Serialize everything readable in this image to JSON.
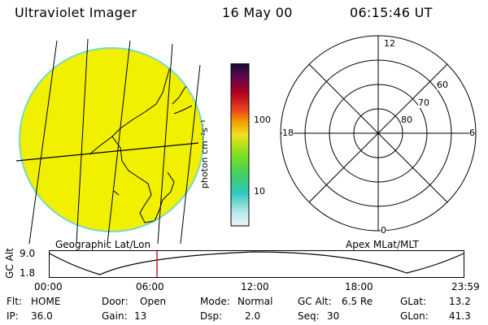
{
  "header": {
    "title": "Ultraviolet Imager",
    "date": "16 May 00",
    "time": "06:15:46 UT"
  },
  "colorbar": {
    "unit_label": "photon cm⁻²s⁻¹",
    "tick_100": "100",
    "tick_10": "10"
  },
  "polar": {
    "mlt_labels": {
      "top": "12",
      "right": "6",
      "bottom": "0",
      "left": "18"
    },
    "lat_labels": [
      "60",
      "70",
      "80"
    ]
  },
  "panels": {
    "geo_label": "Geographic Lat/Lon",
    "apex_label": "Apex MLat/MLT"
  },
  "orbit": {
    "axis_label": "GC Alt",
    "y_max": "9.0",
    "y_min": "1.8",
    "time_ticks": [
      "00:00",
      "06:00",
      "12:00",
      "18:00",
      "23:59"
    ]
  },
  "footer": {
    "row1": [
      {
        "name": "Flt",
        "label": "Flt:",
        "value": "HOME"
      },
      {
        "name": "door",
        "label": "Door:",
        "value": "Open"
      },
      {
        "name": "mode",
        "label": "Mode:",
        "value": "Normal"
      },
      {
        "name": "gc-alt",
        "label": "GC Alt:",
        "value": "6.5 Re"
      },
      {
        "name": "glat",
        "label": "GLat:",
        "value": "13.2"
      }
    ],
    "row2": [
      {
        "name": "ip",
        "label": "IP:",
        "value": "36.0"
      },
      {
        "name": "gain",
        "label": "Gain:",
        "value": "13"
      },
      {
        "name": "dsp",
        "label": "Dsp:",
        "value": "2.0"
      },
      {
        "name": "seq",
        "label": "Seq:",
        "value": "30"
      },
      {
        "name": "glon",
        "label": "GLon:",
        "value": "41.3"
      }
    ]
  },
  "colors": {
    "earth_fill": "#f0f000",
    "earth_edge": "#7ad8c8",
    "marker": "#c81e1e"
  }
}
